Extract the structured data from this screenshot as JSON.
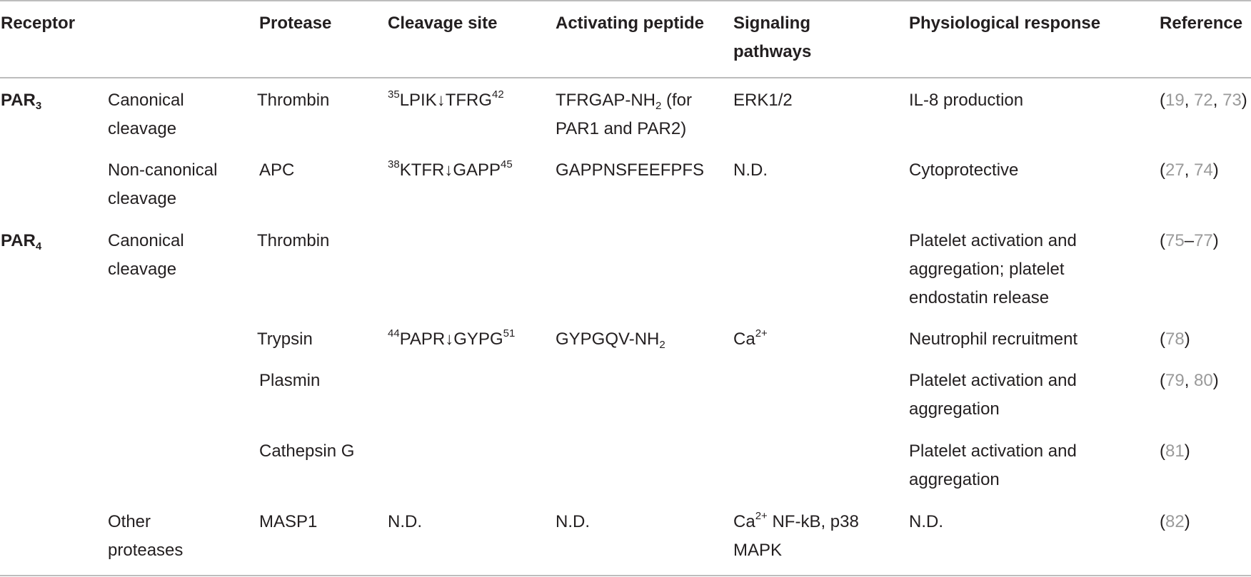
{
  "headers": {
    "receptor": "Receptor",
    "protease": "Protease",
    "cleavage_site": "Cleavage site",
    "activating_peptide": "Activating peptide",
    "signaling_l1": "Signaling",
    "signaling_l2": "pathways",
    "response": "Physiological response",
    "reference": "Reference"
  },
  "receptors": {
    "par3": {
      "name": "PAR",
      "sub": "3"
    },
    "par4": {
      "name": "PAR",
      "sub": "4"
    }
  },
  "rows": {
    "r1": {
      "cleavage_type_l1": "Canonical",
      "cleavage_type_l2": "cleavage",
      "protease": "Thrombin",
      "site_pre": "35",
      "site_seq": "LPIK↓TFRG",
      "site_post": "42",
      "peptide_main": "TFRGAP-NH",
      "peptide_sub": "2",
      "peptide_tail": " (for",
      "peptide_l2": "PAR1 and PAR2)",
      "signaling": "ERK1/2",
      "response": "IL-8 production",
      "refs": [
        "19",
        "72",
        "73"
      ]
    },
    "r2": {
      "cleavage_type_l1": "Non-canonical",
      "cleavage_type_l2": "cleavage",
      "protease": "APC",
      "site_pre": "38",
      "site_seq": "KTFR↓GAPP",
      "site_post": "45",
      "peptide": "GAPPNSFEEFPFS",
      "signaling": "N.D.",
      "response": "Cytoprotective",
      "refs": [
        "27",
        "74"
      ]
    },
    "r3": {
      "cleavage_type_l1": "Canonical",
      "cleavage_type_l2": "cleavage",
      "protease": "Thrombin",
      "response_l1": "Platelet activation and",
      "response_l2": "aggregation; platelet",
      "response_l3": "endostatin release",
      "ref_a": "75",
      "ref_dash": "–",
      "ref_b": "77"
    },
    "r4": {
      "protease": "Trypsin",
      "site_pre": "44",
      "site_seq": "PAPR↓GYPG",
      "site_post": "51",
      "peptide_main": "GYPGQV-NH",
      "peptide_sub": "2",
      "signaling_main": "Ca",
      "signaling_sup": "2+",
      "response": "Neutrophil recruitment",
      "refs": [
        "78"
      ]
    },
    "r5": {
      "protease": "Plasmin",
      "response_l1": "Platelet activation and",
      "response_l2": "aggregation",
      "refs": [
        "79",
        "80"
      ]
    },
    "r6": {
      "protease": "Cathepsin G",
      "response_l1": "Platelet activation and",
      "response_l2": "aggregation",
      "refs": [
        "81"
      ]
    },
    "r7": {
      "cleavage_type_l1": "Other",
      "cleavage_type_l2": "proteases",
      "protease": "MASP1",
      "site": "N.D.",
      "peptide": "N.D.",
      "signaling_main": "Ca",
      "signaling_sup": "2+",
      "signaling_tail": " NF-kB, p38",
      "signaling_l2": "MAPK",
      "response": "N.D.",
      "refs": [
        "82"
      ]
    }
  },
  "punct": {
    "open": "(",
    "close": ")",
    "comma": ", "
  },
  "colors": {
    "text": "#231f20",
    "reference_link": "#9a9a9a",
    "rule": "#bdbdbd"
  }
}
